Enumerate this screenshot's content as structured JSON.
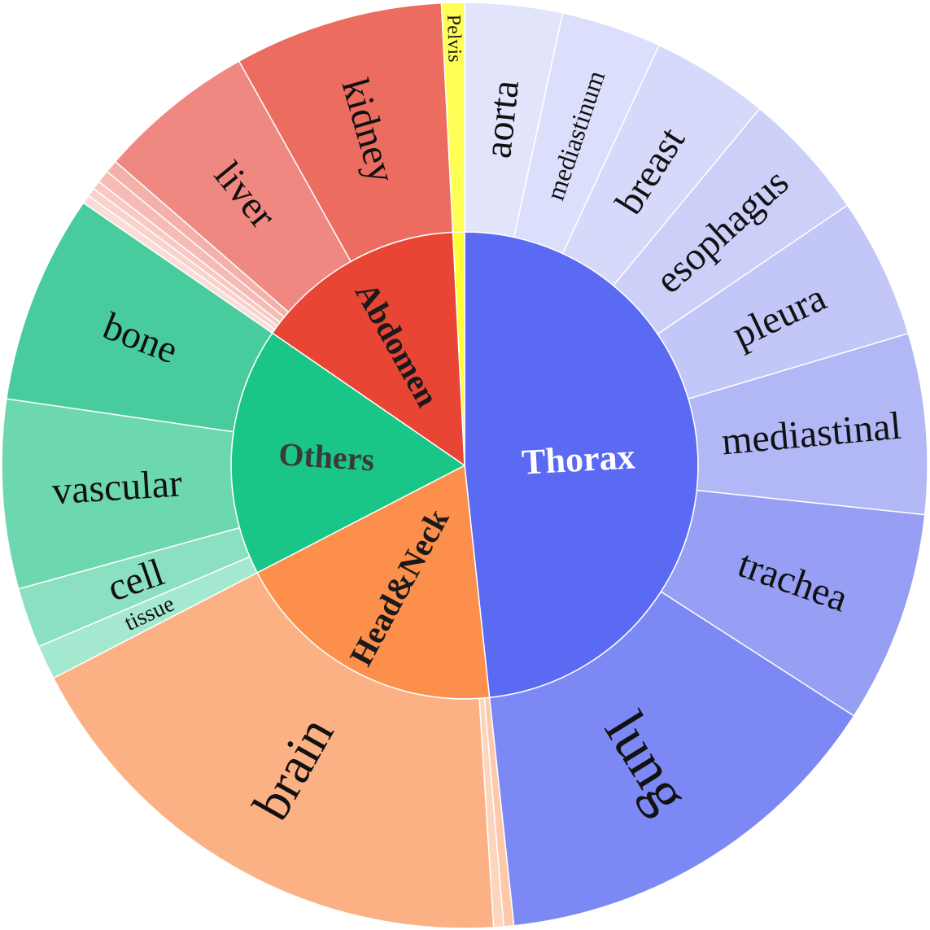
{
  "chart_data": {
    "type": "sunburst",
    "title": "",
    "start_angle_deg": 0,
    "direction": "clockwise",
    "groups": [
      {
        "name": "Thorax",
        "value": 48.3,
        "color": "#5b6af2",
        "label_color": "#ffffff",
        "label_weight": "bold",
        "children": [
          {
            "name": "aorta",
            "value": 3.4,
            "color": "#e2e4fc"
          },
          {
            "name": "mediastinum",
            "value": 3.5,
            "color": "#dcdffb"
          },
          {
            "name": "breast",
            "value": 4.1,
            "color": "#d6d9fa"
          },
          {
            "name": "esophagus",
            "value": 4.5,
            "color": "#ccd0f9"
          },
          {
            "name": "pleura",
            "value": 4.9,
            "color": "#c3c7f8"
          },
          {
            "name": "mediastinal",
            "value": 6.3,
            "color": "#b2b7f6"
          },
          {
            "name": "trachea",
            "value": 7.4,
            "color": "#969ff3"
          },
          {
            "name": "lung",
            "value": 14.2,
            "color": "#7c88f3"
          }
        ]
      },
      {
        "name": "Head&Neck",
        "value": 19.1,
        "color": "#fb8f4b",
        "label_color": "#1a1a1a",
        "label_weight": "bold",
        "children": [
          {
            "name": "",
            "value": 0.35,
            "color": "#fdc9aa"
          },
          {
            "name": "",
            "value": 0.35,
            "color": "#fdd5bd"
          },
          {
            "name": "brain",
            "value": 18.4,
            "color": "#fcb184"
          }
        ]
      },
      {
        "name": "Others",
        "value": 17.2,
        "color": "#1ac588",
        "label_color": "#3a3a3a",
        "label_weight": "bold",
        "children": [
          {
            "name": "tissue",
            "value": 1.2,
            "color": "#a4e8cf"
          },
          {
            "name": "cell",
            "value": 2.1,
            "color": "#8ae0c0"
          },
          {
            "name": "vascular",
            "value": 6.6,
            "color": "#6dd7b0"
          },
          {
            "name": "bone",
            "value": 7.3,
            "color": "#49cc9d"
          }
        ]
      },
      {
        "name": "Abdomen",
        "value": 14.6,
        "color": "#e84535",
        "label_color": "#1a1a1a",
        "label_weight": "bold",
        "children": [
          {
            "name": "",
            "value": 0.3,
            "color": "#fbdcd8"
          },
          {
            "name": "",
            "value": 0.3,
            "color": "#fad2cd"
          },
          {
            "name": "",
            "value": 0.3,
            "color": "#f8c9c3"
          },
          {
            "name": "",
            "value": 0.45,
            "color": "#f5bbb4"
          },
          {
            "name": "",
            "value": 0.45,
            "color": "#f3b1a9"
          },
          {
            "name": "liver",
            "value": 5.5,
            "color": "#ef8880"
          },
          {
            "name": "kidney",
            "value": 7.3,
            "color": "#ec6d60"
          }
        ]
      },
      {
        "name": "Pelvis",
        "value": 0.8,
        "color": "#ffff33",
        "label_color": "#1a1a1a",
        "label_weight": "normal",
        "children": [
          {
            "name": "",
            "value": 0.8,
            "color": "#ffff55"
          }
        ]
      }
    ]
  }
}
